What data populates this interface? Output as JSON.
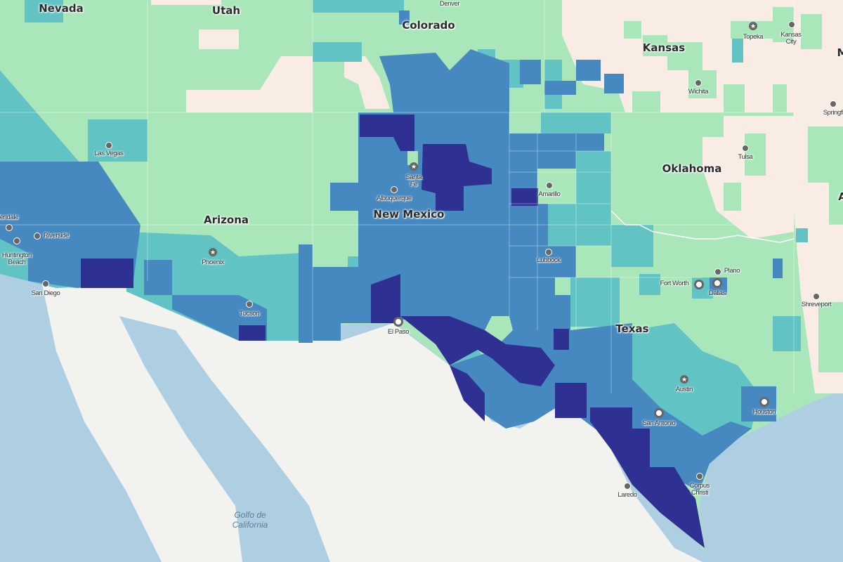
{
  "legend_colors": {
    "lowest": "#f9ece4",
    "low": "#a9e7ba",
    "mid": "#62c3c4",
    "high": "#4689c0",
    "highest": "#2e3192",
    "water": "#aecfe2",
    "mexico": "#f2f2ef"
  },
  "states": [
    "Nevada",
    "Utah",
    "Colorado",
    "Kansas",
    "Arizona",
    "New Mexico",
    "Oklahoma",
    "Texas",
    "M",
    "A"
  ],
  "cities": {
    "denver": "Denver",
    "topeka": "Topeka",
    "kansas_city": "Kansas City",
    "wichita": "Wichita",
    "springfield": "Springfield",
    "tulsa": "Tulsa",
    "las_vegas": "Las Vegas",
    "santa_fe": "Santa Fe",
    "albuquerque": "Albuquerque",
    "amarillo": "Amarillo",
    "lubbock": "Lubbock",
    "phoenix": "Phoenix",
    "tucson": "Tucson",
    "el_paso": "El Paso",
    "fort_worth": "Fort Worth",
    "dallas": "Dallas",
    "plano": "Plano",
    "shreveport": "Shreveport",
    "austin": "Austin",
    "houston": "Houston",
    "san_antonio": "San Antonio",
    "laredo": "Laredo",
    "corpus_christi": "Corpus Christi",
    "glendale": "lendale",
    "riverside": "Riverside",
    "huntington_beach": "Huntington Beach",
    "san_diego": "San Diego"
  },
  "water_labels": {
    "gulf_of_california": "Golfo de California"
  },
  "icons": {
    "capital": "star-in-circle-icon",
    "city": "dot-icon",
    "major_city": "ring-icon"
  }
}
